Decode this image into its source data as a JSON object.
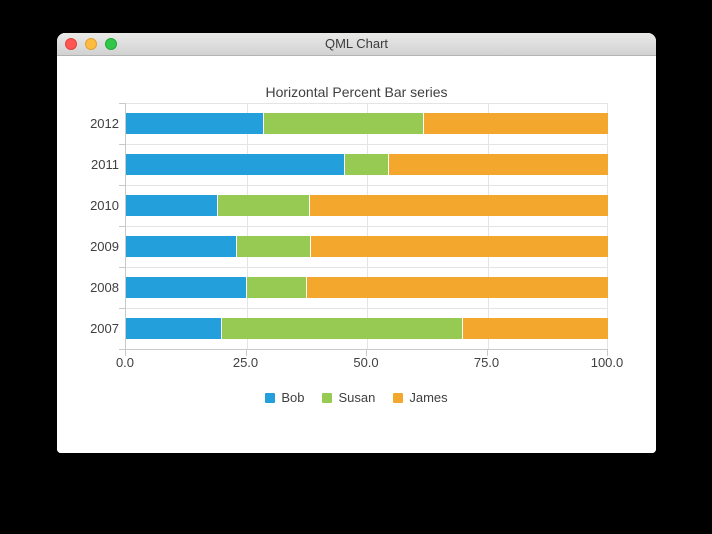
{
  "window": {
    "title": "QML Chart",
    "close_button": "close",
    "minimize_button": "minimize",
    "zoom_button": "zoom"
  },
  "chart_data": {
    "type": "bar",
    "orientation": "horizontal",
    "stacking": "percent",
    "title": "Horizontal Percent Bar series",
    "categories": [
      "2012",
      "2011",
      "2010",
      "2009",
      "2008",
      "2007"
    ],
    "series": [
      {
        "name": "Bob",
        "color": "#239fdc",
        "values": [
          6,
          5,
          4,
          3,
          2,
          2
        ]
      },
      {
        "name": "Susan",
        "color": "#97ca52",
        "values": [
          7,
          1,
          4,
          2,
          1,
          5
        ]
      },
      {
        "name": "James",
        "color": "#f4a72d",
        "values": [
          8,
          5,
          13,
          8,
          5,
          3
        ]
      }
    ],
    "percent_by_category": {
      "2012": [
        28.6,
        33.3,
        38.1
      ],
      "2011": [
        45.5,
        9.1,
        45.5
      ],
      "2010": [
        19.0,
        19.0,
        62.0
      ],
      "2009": [
        23.1,
        15.4,
        61.5
      ],
      "2008": [
        25.0,
        12.5,
        62.5
      ],
      "2007": [
        20.0,
        50.0,
        30.0
      ]
    },
    "x_ticks": [
      "0.0",
      "25.0",
      "50.0",
      "75.0",
      "100.0"
    ],
    "xlim": [
      0,
      100
    ],
    "grid": true,
    "legend_position": "bottom",
    "colors": {
      "label": "#404040",
      "gridline": "#e4e4e4",
      "axisline": "#c9c9c9"
    }
  }
}
